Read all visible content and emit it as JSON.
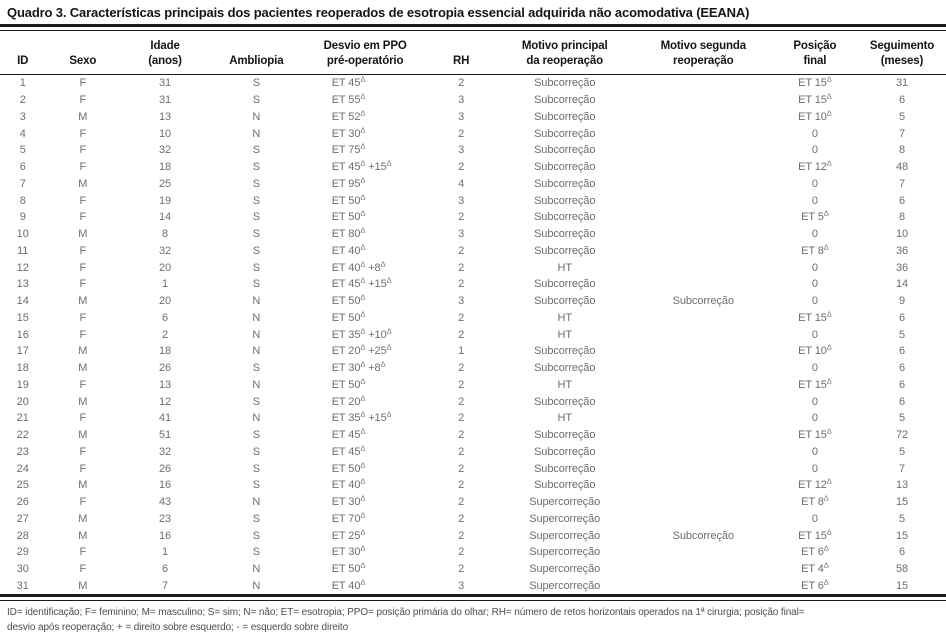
{
  "title": "Quadro 3. Características principais dos pacientes reoperados de esotropia essencial adquirida não acomodativa (EEANA)",
  "table": {
    "columns": [
      {
        "key": "id",
        "label": "ID"
      },
      {
        "key": "sexo",
        "label": "Sexo"
      },
      {
        "key": "idade",
        "label": "Idade\n(anos)"
      },
      {
        "key": "ambliopia",
        "label": "Ambliopia"
      },
      {
        "key": "desvio",
        "label": "Desvio em PPO\npré-operatório"
      },
      {
        "key": "rh",
        "label": "RH"
      },
      {
        "key": "motivo_principal",
        "label": "Motivo principal\nda reoperação"
      },
      {
        "key": "motivo_segunda",
        "label": "Motivo segunda\nreoperação"
      },
      {
        "key": "posicao_final",
        "label": "Posição\nfinal"
      },
      {
        "key": "seguimento",
        "label": "Seguimento\n(meses)"
      }
    ],
    "rows": [
      [
        "1",
        "F",
        "31",
        "S",
        "ET 45Δ",
        "2",
        "Subcorreção",
        "",
        "ET 15Δ",
        "31"
      ],
      [
        "2",
        "F",
        "31",
        "S",
        "ET 55Δ",
        "3",
        "Subcorreção",
        "",
        "ET 15Δ",
        "6"
      ],
      [
        "3",
        "M",
        "13",
        "N",
        "ET 52Δ",
        "3",
        "Subcorreção",
        "",
        "ET 10Δ",
        "5"
      ],
      [
        "4",
        "F",
        "10",
        "N",
        "ET 30Δ",
        "2",
        "Subcorreção",
        "",
        "0",
        "7"
      ],
      [
        "5",
        "F",
        "32",
        "S",
        "ET 75Δ",
        "3",
        "Subcorreção",
        "",
        "0",
        "8"
      ],
      [
        "6",
        "F",
        "18",
        "S",
        "ET 45Δ +15Δ",
        "2",
        "Subcorreção",
        "",
        "ET 12Δ",
        "48"
      ],
      [
        "7",
        "M",
        "25",
        "S",
        "ET 95Δ",
        "4",
        "Subcorreção",
        "",
        "0",
        "7"
      ],
      [
        "8",
        "F",
        "19",
        "S",
        "ET 50Δ",
        "3",
        "Subcorreção",
        "",
        "0",
        "6"
      ],
      [
        "9",
        "F",
        "14",
        "S",
        "ET 50Δ",
        "2",
        "Subcorreção",
        "",
        "ET 5Δ",
        "8"
      ],
      [
        "10",
        "M",
        "8",
        "S",
        "ET 80Δ",
        "3",
        "Subcorreção",
        "",
        "0",
        "10"
      ],
      [
        "11",
        "F",
        "32",
        "S",
        "ET 40Δ",
        "2",
        "Subcorreção",
        "",
        "ET 8Δ",
        "36"
      ],
      [
        "12",
        "F",
        "20",
        "S",
        "ET 40Δ +8Δ",
        "2",
        "HT",
        "",
        "0",
        "36"
      ],
      [
        "13",
        "F",
        "1",
        "S",
        "ET 45Δ +15Δ",
        "2",
        "Subcorreção",
        "",
        "0",
        "14"
      ],
      [
        "14",
        "M",
        "20",
        "N",
        "ET 50Δ",
        "3",
        "Subcorreção",
        "Subcorreção",
        "0",
        "9"
      ],
      [
        "15",
        "F",
        "6",
        "N",
        "ET 50Δ",
        "2",
        "HT",
        "",
        "ET 15Δ",
        "6"
      ],
      [
        "16",
        "F",
        "2",
        "N",
        "ET 35Δ +10Δ",
        "2",
        "HT",
        "",
        "0",
        "5"
      ],
      [
        "17",
        "M",
        "18",
        "N",
        "ET 20Δ +25Δ",
        "1",
        "Subcorreção",
        "",
        "ET 10Δ",
        "6"
      ],
      [
        "18",
        "M",
        "26",
        "S",
        "ET 30Δ +8Δ",
        "2",
        "Subcorreção",
        "",
        "0",
        "6"
      ],
      [
        "19",
        "F",
        "13",
        "N",
        "ET 50Δ",
        "2",
        "HT",
        "",
        "ET 15Δ",
        "6"
      ],
      [
        "20",
        "M",
        "12",
        "S",
        "ET 20Δ",
        "2",
        "Subcorreção",
        "",
        "0",
        "6"
      ],
      [
        "21",
        "F",
        "41",
        "N",
        "ET 35Δ +15Δ",
        "2",
        "HT",
        "",
        "0",
        "5"
      ],
      [
        "22",
        "M",
        "51",
        "S",
        "ET 45Δ",
        "2",
        "Subcorreção",
        "",
        "ET 15Δ",
        "72"
      ],
      [
        "23",
        "F",
        "32",
        "S",
        "ET 45Δ",
        "2",
        "Subcorreção",
        "",
        "0",
        "5"
      ],
      [
        "24",
        "F",
        "26",
        "S",
        "ET 50Δ",
        "2",
        "Subcorreção",
        "",
        "0",
        "7"
      ],
      [
        "25",
        "M",
        "16",
        "S",
        "ET 40Δ",
        "2",
        "Subcorreção",
        "",
        "ET 12Δ",
        "13"
      ],
      [
        "26",
        "F",
        "43",
        "N",
        "ET 30Δ",
        "2",
        "Supercorreção",
        "",
        "ET 8Δ",
        "15"
      ],
      [
        "27",
        "M",
        "23",
        "S",
        "ET 70Δ",
        "2",
        "Supercorreção",
        "",
        "0",
        "5"
      ],
      [
        "28",
        "M",
        "16",
        "S",
        "ET 25Δ",
        "2",
        "Supercorreção",
        "Subcorreção",
        "ET 15Δ",
        "15"
      ],
      [
        "29",
        "F",
        "1",
        "S",
        "ET 30Δ",
        "2",
        "Supercorreção",
        "",
        "ET 6Δ",
        "6"
      ],
      [
        "30",
        "F",
        "6",
        "N",
        "ET 50Δ",
        "2",
        "Supercorreção",
        "",
        "ET 4Δ",
        "58"
      ],
      [
        "31",
        "M",
        "7",
        "N",
        "ET 40Δ",
        "3",
        "Supercorreção",
        "",
        "ET 6Δ",
        "15"
      ]
    ]
  },
  "footnote": {
    "line1": "ID= identificação; F= feminino; M= masculino; S= sim; N= não; ET= esotropia; PPO= posição primária do olhar; RH= número de retos horizontais operados na 1ª cirurgia; posição final=",
    "line2": "desvio após reoperação; + = direito sobre esquerdo; - = esquerdo sobre direito"
  },
  "colors": {
    "title_text": "#151515",
    "data_text": "#6e6e70",
    "footnote_text": "#4e4e50",
    "rule": "#1c1c1c"
  }
}
